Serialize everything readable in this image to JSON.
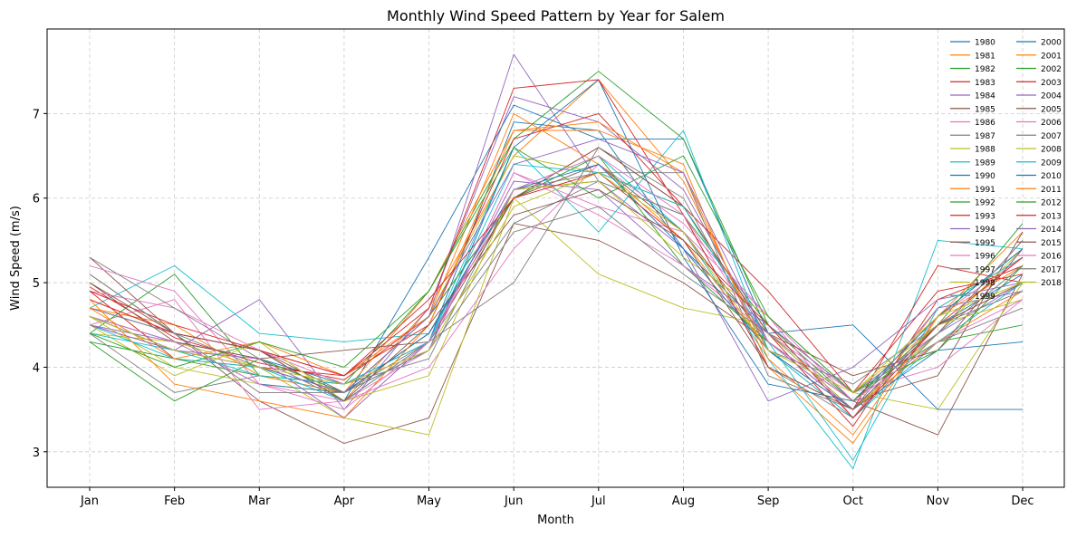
{
  "chart_data": {
    "type": "line",
    "title": "Monthly Wind Speed Pattern by Year for Salem",
    "xlabel": "Month",
    "ylabel": "Wind Speed (m/s)",
    "categories": [
      "Jan",
      "Feb",
      "Mar",
      "Apr",
      "May",
      "Jun",
      "Jul",
      "Aug",
      "Sep",
      "Oct",
      "Nov",
      "Dec"
    ],
    "y_ticks": [
      "3",
      "4",
      "5",
      "6",
      "7"
    ],
    "ylim": [
      2.58,
      8.0
    ],
    "grid": true,
    "legend_position": "top-right",
    "legend_columns": 2,
    "series": [
      {
        "name": "1980",
        "color": "#1f77b4",
        "values": [
          4.6,
          4.3,
          4.1,
          3.8,
          4.3,
          6.9,
          6.8,
          5.4,
          4.4,
          3.5,
          4.5,
          5.1
        ]
      },
      {
        "name": "1981",
        "color": "#ff7f0e",
        "values": [
          4.8,
          4.4,
          4.2,
          3.6,
          4.7,
          6.5,
          7.4,
          6.2,
          4.2,
          3.4,
          4.7,
          5.3
        ]
      },
      {
        "name": "1982",
        "color": "#2ca02c",
        "values": [
          4.3,
          4.1,
          3.9,
          3.7,
          4.4,
          6.1,
          6.2,
          5.8,
          4.5,
          3.6,
          4.6,
          5.4
        ]
      },
      {
        "name": "1983",
        "color": "#d62728",
        "values": [
          4.95,
          4.35,
          4.05,
          3.85,
          4.6,
          6.0,
          6.6,
          5.9,
          4.4,
          3.3,
          4.8,
          5.2
        ]
      },
      {
        "name": "1984",
        "color": "#9467bd",
        "values": [
          4.5,
          4.2,
          4.8,
          3.5,
          4.7,
          7.2,
          6.9,
          6.1,
          4.3,
          3.5,
          4.4,
          5.0
        ]
      },
      {
        "name": "1985",
        "color": "#8c564b",
        "values": [
          5.1,
          4.4,
          3.6,
          3.1,
          3.4,
          5.7,
          5.5,
          5.0,
          4.3,
          3.6,
          3.2,
          5.1
        ]
      },
      {
        "name": "1986",
        "color": "#e377c2",
        "values": [
          4.5,
          4.8,
          3.5,
          3.6,
          4.2,
          6.3,
          5.9,
          5.6,
          4.6,
          3.4,
          4.6,
          5.3
        ]
      },
      {
        "name": "1987",
        "color": "#7f7f7f",
        "values": [
          4.4,
          3.7,
          3.9,
          3.8,
          4.1,
          6.1,
          6.3,
          6.3,
          3.9,
          3.5,
          4.3,
          4.7
        ]
      },
      {
        "name": "1988",
        "color": "#bcbd22",
        "values": [
          4.4,
          4.3,
          4.0,
          3.4,
          3.2,
          6.0,
          5.1,
          4.7,
          4.5,
          3.7,
          3.5,
          5.0
        ]
      },
      {
        "name": "1989",
        "color": "#17becf",
        "values": [
          4.7,
          5.2,
          4.4,
          4.3,
          4.4,
          6.1,
          6.5,
          5.6,
          4.1,
          2.8,
          5.5,
          5.4
        ]
      },
      {
        "name": "1990",
        "color": "#1f77b4",
        "values": [
          4.7,
          4.4,
          4.2,
          3.6,
          5.3,
          7.1,
          6.7,
          6.7,
          4.4,
          4.5,
          3.5,
          3.5
        ]
      },
      {
        "name": "1991",
        "color": "#ff7f0e",
        "values": [
          4.7,
          4.5,
          3.9,
          3.7,
          4.9,
          6.8,
          6.8,
          6.4,
          4.0,
          3.1,
          4.6,
          5.6
        ]
      },
      {
        "name": "1992",
        "color": "#2ca02c",
        "values": [
          4.4,
          5.1,
          3.9,
          3.8,
          4.9,
          6.7,
          7.5,
          6.7,
          4.5,
          3.7,
          4.3,
          4.5
        ]
      },
      {
        "name": "1993",
        "color": "#d62728",
        "values": [
          4.9,
          4.1,
          4.0,
          3.9,
          4.5,
          6.7,
          7.0,
          5.9,
          4.9,
          3.7,
          4.9,
          5.1
        ]
      },
      {
        "name": "1994",
        "color": "#9467bd",
        "values": [
          4.6,
          4.2,
          4.1,
          3.7,
          4.6,
          7.7,
          6.2,
          5.4,
          3.6,
          4.0,
          4.8,
          5.0
        ]
      },
      {
        "name": "1995",
        "color": "#8c564b",
        "values": [
          5.3,
          4.4,
          4.2,
          3.7,
          4.4,
          6.0,
          6.4,
          5.6,
          4.3,
          3.6,
          3.9,
          5.6
        ]
      },
      {
        "name": "1996",
        "color": "#e377c2",
        "values": [
          5.2,
          4.9,
          3.8,
          3.6,
          4.0,
          5.4,
          6.4,
          5.7,
          4.6,
          3.6,
          4.5,
          5.0
        ]
      },
      {
        "name": "1997",
        "color": "#7f7f7f",
        "values": [
          4.7,
          4.4,
          4.0,
          3.7,
          4.3,
          5.7,
          6.2,
          5.8,
          4.0,
          3.4,
          4.4,
          5.2
        ]
      },
      {
        "name": "1998",
        "color": "#bcbd22",
        "values": [
          4.6,
          4.0,
          3.8,
          3.7,
          4.6,
          6.5,
          6.3,
          5.9,
          4.4,
          3.5,
          4.4,
          5.4
        ]
      },
      {
        "name": "1999",
        "color": "#17becf",
        "values": [
          4.5,
          4.1,
          4.0,
          3.6,
          4.3,
          6.6,
          5.6,
          6.8,
          4.2,
          3.4,
          4.3,
          5.0
        ]
      },
      {
        "name": "2000",
        "color": "#1f77b4",
        "values": [
          4.6,
          4.3,
          3.8,
          3.7,
          4.2,
          6.6,
          7.4,
          5.3,
          3.8,
          3.6,
          4.6,
          5.4
        ]
      },
      {
        "name": "2001",
        "color": "#ff7f0e",
        "values": [
          4.7,
          4.1,
          4.3,
          3.9,
          4.6,
          7.0,
          6.4,
          5.5,
          4.2,
          3.5,
          4.3,
          4.9
        ]
      },
      {
        "name": "2002",
        "color": "#2ca02c",
        "values": [
          4.3,
          3.6,
          4.1,
          3.7,
          4.6,
          6.0,
          6.5,
          5.2,
          4.3,
          3.6,
          4.5,
          5.7
        ]
      },
      {
        "name": "2003",
        "color": "#d62728",
        "values": [
          4.8,
          4.4,
          4.2,
          3.9,
          4.7,
          7.3,
          7.4,
          5.8,
          4.0,
          3.5,
          5.2,
          5.0
        ]
      },
      {
        "name": "2004",
        "color": "#9467bd",
        "values": [
          4.5,
          4.3,
          4.1,
          3.4,
          4.3,
          6.2,
          6.1,
          5.2,
          4.5,
          3.7,
          4.4,
          5.5
        ]
      },
      {
        "name": "2005",
        "color": "#8c564b",
        "values": [
          5.0,
          4.3,
          4.1,
          4.2,
          4.3,
          6.0,
          6.6,
          5.9,
          4.4,
          3.9,
          4.2,
          5.4
        ]
      },
      {
        "name": "2006",
        "color": "#e377c2",
        "values": [
          4.9,
          4.7,
          4.2,
          3.8,
          4.2,
          6.3,
          5.8,
          5.2,
          4.4,
          3.7,
          4.0,
          4.8
        ]
      },
      {
        "name": "2007",
        "color": "#7f7f7f",
        "values": [
          5.3,
          4.7,
          4.1,
          3.6,
          4.3,
          5.0,
          6.6,
          6.0,
          4.2,
          3.8,
          4.5,
          4.9
        ]
      },
      {
        "name": "2008",
        "color": "#bcbd22",
        "values": [
          4.5,
          3.9,
          4.3,
          3.6,
          3.9,
          6.1,
          6.2,
          5.3,
          4.6,
          3.7,
          4.5,
          4.8
        ]
      },
      {
        "name": "2009",
        "color": "#17becf",
        "values": [
          4.4,
          4.2,
          3.9,
          3.8,
          4.3,
          6.4,
          6.3,
          5.9,
          4.3,
          2.9,
          4.7,
          5.3
        ]
      },
      {
        "name": "2010",
        "color": "#1f77b4",
        "values": [
          4.6,
          4.2,
          4.0,
          3.7,
          4.4,
          6.1,
          6.4,
          5.4,
          4.2,
          3.5,
          4.2,
          4.3
        ]
      },
      {
        "name": "2011",
        "color": "#ff7f0e",
        "values": [
          4.8,
          3.8,
          3.6,
          3.4,
          4.5,
          6.8,
          6.9,
          6.3,
          4.1,
          3.2,
          4.6,
          5.2
        ]
      },
      {
        "name": "2012",
        "color": "#2ca02c",
        "values": [
          4.4,
          4.0,
          4.3,
          4.0,
          4.9,
          6.6,
          6.0,
          6.5,
          4.6,
          3.7,
          4.2,
          5.2
        ]
      },
      {
        "name": "2013",
        "color": "#d62728",
        "values": [
          4.9,
          4.5,
          4.2,
          3.9,
          4.8,
          6.0,
          6.3,
          5.5,
          4.5,
          3.4,
          4.5,
          5.3
        ]
      },
      {
        "name": "2014",
        "color": "#9467bd",
        "values": [
          4.5,
          4.2,
          4.0,
          3.7,
          4.6,
          6.4,
          6.7,
          6.3,
          4.3,
          3.5,
          4.7,
          4.9
        ]
      },
      {
        "name": "2015",
        "color": "#8c564b",
        "values": [
          5.0,
          4.4,
          4.2,
          3.6,
          4.5,
          5.8,
          6.1,
          5.5,
          4.0,
          3.5,
          4.5,
          5.0
        ]
      },
      {
        "name": "2016",
        "color": "#e377c2",
        "values": [
          4.6,
          4.3,
          3.8,
          3.5,
          4.3,
          6.1,
          6.5,
          5.8,
          4.3,
          3.6,
          4.3,
          4.8
        ]
      },
      {
        "name": "2017",
        "color": "#7f7f7f",
        "values": [
          5.1,
          4.4,
          3.7,
          3.7,
          4.2,
          5.6,
          5.9,
          5.1,
          4.4,
          3.6,
          4.4,
          5.5
        ]
      },
      {
        "name": "2018",
        "color": "#bcbd22",
        "values": [
          4.6,
          4.2,
          4.0,
          3.8,
          4.2,
          5.9,
          6.3,
          5.6,
          4.2,
          3.7,
          4.6,
          5.0
        ]
      }
    ]
  }
}
